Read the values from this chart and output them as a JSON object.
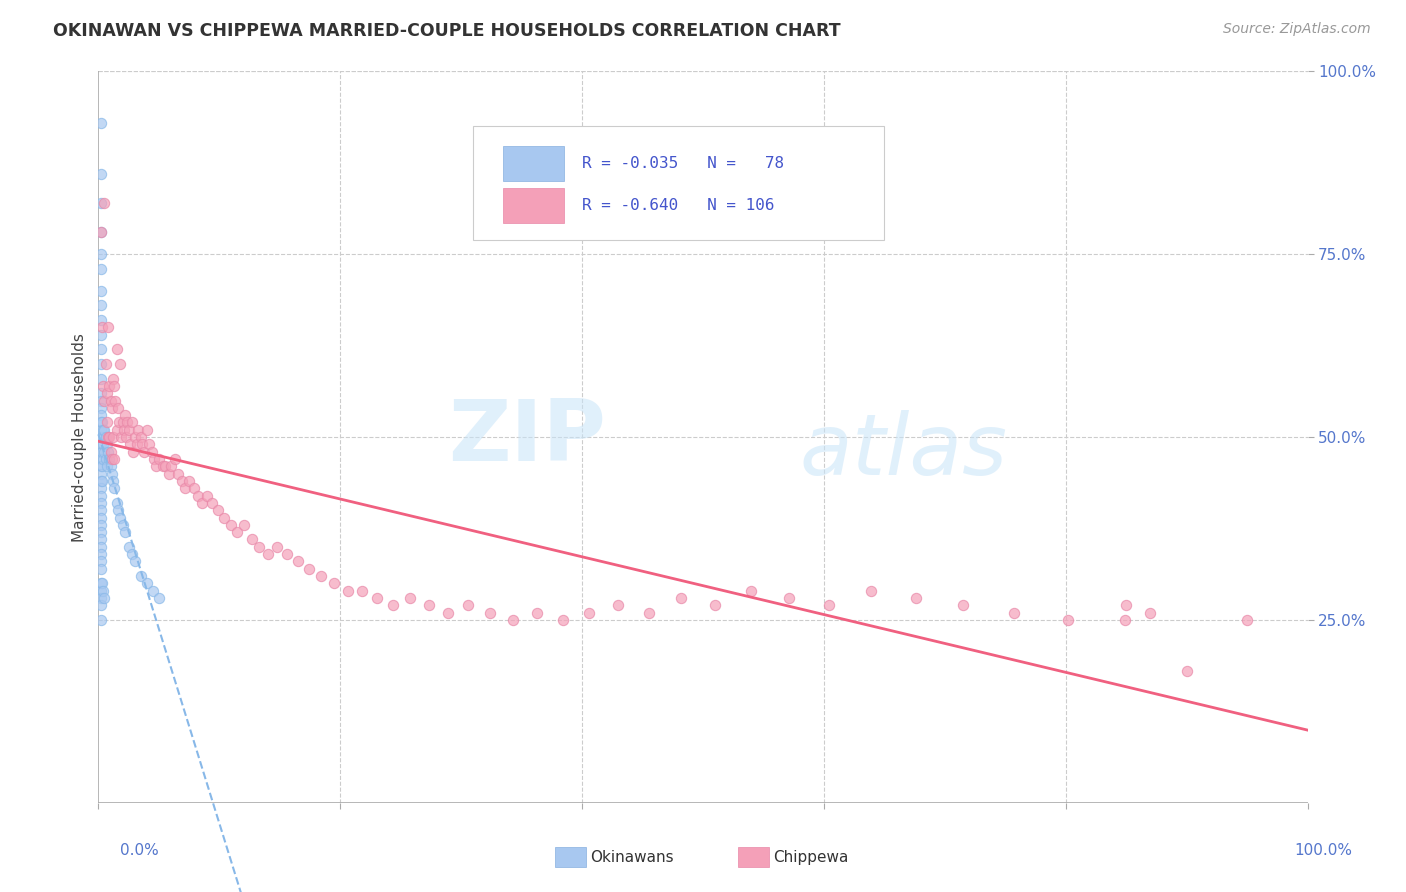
{
  "title": "OKINAWAN VS CHIPPEWA MARRIED-COUPLE HOUSEHOLDS CORRELATION CHART",
  "source": "Source: ZipAtlas.com",
  "ylabel": "Married-couple Households",
  "watermark_zip": "ZIP",
  "watermark_atlas": "atlas",
  "legend_r_okinawan": "R = -0.035",
  "legend_n_okinawan": "N =  78",
  "legend_r_chippewa": "R = -0.640",
  "legend_n_chippewa": "N = 106",
  "okinawan_color": "#a8c8f0",
  "chippewa_color": "#f4a0b8",
  "chippewa_line_color": "#f06080",
  "okinawan_line_color": "#a8c8f0",
  "legend_text_color": "#4455cc",
  "background_color": "#ffffff",
  "right_tick_color": "#5577cc",
  "xlim": [
    0.0,
    1.0
  ],
  "ylim": [
    0.0,
    1.0
  ],
  "grid_color": "#cccccc",
  "border_color": "#aaaaaa",
  "okinawan_x": [
    0.002,
    0.002,
    0.002,
    0.002,
    0.002,
    0.002,
    0.002,
    0.002,
    0.002,
    0.002,
    0.002,
    0.002,
    0.002,
    0.002,
    0.002,
    0.002,
    0.002,
    0.002,
    0.002,
    0.002,
    0.002,
    0.002,
    0.002,
    0.002,
    0.002,
    0.002,
    0.002,
    0.002,
    0.002,
    0.002,
    0.002,
    0.002,
    0.002,
    0.002,
    0.002,
    0.002,
    0.002,
    0.002,
    0.002,
    0.002,
    0.002,
    0.002,
    0.002,
    0.003,
    0.003,
    0.003,
    0.003,
    0.003,
    0.003,
    0.004,
    0.004,
    0.004,
    0.004,
    0.005,
    0.005,
    0.005,
    0.006,
    0.006,
    0.007,
    0.007,
    0.008,
    0.009,
    0.01,
    0.011,
    0.012,
    0.013,
    0.015,
    0.016,
    0.018,
    0.02,
    0.022,
    0.025,
    0.028,
    0.03,
    0.035,
    0.04,
    0.045,
    0.05
  ],
  "okinawan_y": [
    0.93,
    0.86,
    0.82,
    0.78,
    0.75,
    0.73,
    0.7,
    0.68,
    0.66,
    0.64,
    0.62,
    0.6,
    0.58,
    0.56,
    0.55,
    0.54,
    0.53,
    0.52,
    0.51,
    0.5,
    0.49,
    0.48,
    0.47,
    0.46,
    0.45,
    0.44,
    0.43,
    0.42,
    0.41,
    0.4,
    0.39,
    0.38,
    0.37,
    0.36,
    0.35,
    0.34,
    0.33,
    0.32,
    0.3,
    0.29,
    0.28,
    0.27,
    0.25,
    0.52,
    0.5,
    0.48,
    0.46,
    0.44,
    0.3,
    0.51,
    0.49,
    0.47,
    0.29,
    0.51,
    0.48,
    0.28,
    0.5,
    0.47,
    0.49,
    0.46,
    0.48,
    0.47,
    0.46,
    0.45,
    0.44,
    0.43,
    0.41,
    0.4,
    0.39,
    0.38,
    0.37,
    0.35,
    0.34,
    0.33,
    0.31,
    0.3,
    0.29,
    0.28
  ],
  "chippewa_x": [
    0.002,
    0.003,
    0.004,
    0.005,
    0.005,
    0.006,
    0.007,
    0.007,
    0.008,
    0.008,
    0.009,
    0.009,
    0.01,
    0.01,
    0.011,
    0.011,
    0.012,
    0.012,
    0.013,
    0.013,
    0.014,
    0.015,
    0.015,
    0.016,
    0.017,
    0.018,
    0.019,
    0.02,
    0.021,
    0.022,
    0.023,
    0.024,
    0.025,
    0.026,
    0.028,
    0.029,
    0.03,
    0.032,
    0.033,
    0.035,
    0.036,
    0.038,
    0.04,
    0.042,
    0.044,
    0.046,
    0.048,
    0.05,
    0.053,
    0.055,
    0.058,
    0.06,
    0.063,
    0.066,
    0.069,
    0.072,
    0.075,
    0.079,
    0.082,
    0.086,
    0.09,
    0.094,
    0.099,
    0.104,
    0.11,
    0.115,
    0.12,
    0.127,
    0.133,
    0.14,
    0.148,
    0.156,
    0.165,
    0.174,
    0.184,
    0.195,
    0.206,
    0.218,
    0.23,
    0.244,
    0.258,
    0.273,
    0.289,
    0.306,
    0.324,
    0.343,
    0.363,
    0.384,
    0.406,
    0.43,
    0.455,
    0.482,
    0.51,
    0.54,
    0.571,
    0.604,
    0.639,
    0.676,
    0.715,
    0.757,
    0.802,
    0.849,
    0.85,
    0.87,
    0.9,
    0.95
  ],
  "chippewa_y": [
    0.78,
    0.65,
    0.57,
    0.82,
    0.55,
    0.6,
    0.56,
    0.52,
    0.65,
    0.5,
    0.57,
    0.5,
    0.55,
    0.48,
    0.54,
    0.47,
    0.58,
    0.5,
    0.57,
    0.47,
    0.55,
    0.62,
    0.51,
    0.54,
    0.52,
    0.6,
    0.5,
    0.52,
    0.51,
    0.53,
    0.5,
    0.52,
    0.51,
    0.49,
    0.52,
    0.48,
    0.5,
    0.49,
    0.51,
    0.5,
    0.49,
    0.48,
    0.51,
    0.49,
    0.48,
    0.47,
    0.46,
    0.47,
    0.46,
    0.46,
    0.45,
    0.46,
    0.47,
    0.45,
    0.44,
    0.43,
    0.44,
    0.43,
    0.42,
    0.41,
    0.42,
    0.41,
    0.4,
    0.39,
    0.38,
    0.37,
    0.38,
    0.36,
    0.35,
    0.34,
    0.35,
    0.34,
    0.33,
    0.32,
    0.31,
    0.3,
    0.29,
    0.29,
    0.28,
    0.27,
    0.28,
    0.27,
    0.26,
    0.27,
    0.26,
    0.25,
    0.26,
    0.25,
    0.26,
    0.27,
    0.26,
    0.28,
    0.27,
    0.29,
    0.28,
    0.27,
    0.29,
    0.28,
    0.27,
    0.26,
    0.25,
    0.25,
    0.27,
    0.26,
    0.18,
    0.25
  ]
}
